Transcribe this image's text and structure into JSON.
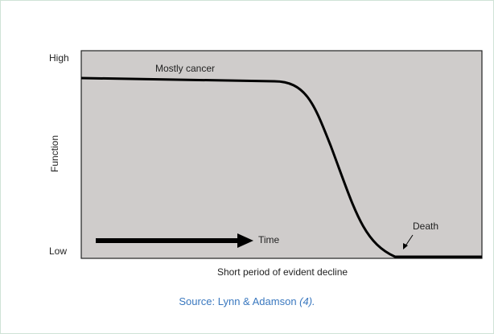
{
  "y_axis": {
    "label": "Function",
    "high": "High",
    "low": "Low"
  },
  "annotations": {
    "curve": "Mostly cancer",
    "arrow": "Time",
    "end": "Death"
  },
  "caption": "Short period of evident decline",
  "source": {
    "text": "Source: Lynn & Adamson",
    "ref": "(4)."
  }
}
